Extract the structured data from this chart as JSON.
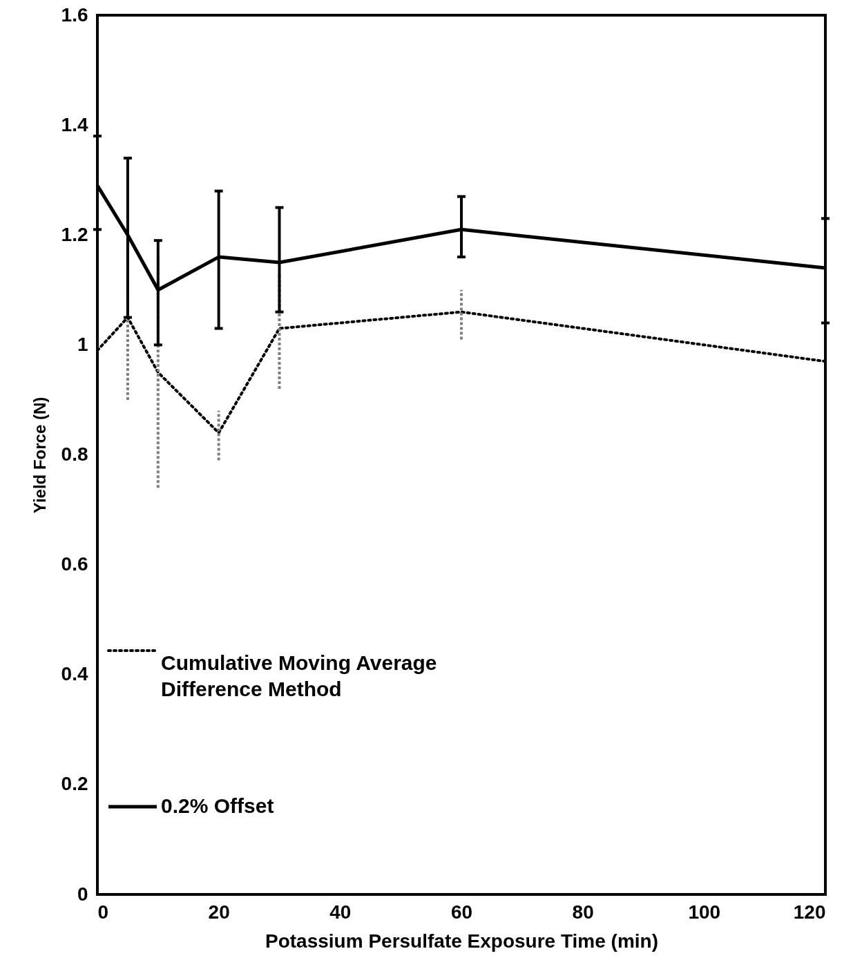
{
  "chart_data": {
    "type": "line",
    "xlabel": "Potassium Persulfate Exposure Time (min)",
    "ylabel": "Yield Force (N)",
    "x": [
      0,
      5,
      10,
      20,
      30,
      60,
      120
    ],
    "xlim": [
      0,
      120
    ],
    "xticks": [
      0,
      20,
      40,
      60,
      80,
      100,
      120
    ],
    "ylim": [
      0,
      1.6
    ],
    "yticks": [
      0,
      0.2,
      0.4,
      0.6,
      0.8,
      1,
      1.2,
      1.4,
      1.6
    ],
    "grid": false,
    "legend": "left",
    "marker": "none",
    "series": [
      {
        "name": "Cumulative Moving Average Difference Method",
        "color": "#000000",
        "line_style": "dotted",
        "values": [
          0.99,
          1.05,
          0.95,
          0.84,
          1.03,
          1.06,
          0.97
        ],
        "errors": [
          [
            0.88,
            1.08
          ],
          [
            0.9,
            1.2
          ],
          [
            0.74,
            1.16
          ],
          [
            0.79,
            0.88
          ],
          [
            0.92,
            1.13
          ],
          [
            1.01,
            1.1
          ],
          [
            0.89,
            1.04
          ]
        ]
      },
      {
        "name": "0.2% Offset",
        "color": "#000000",
        "line_style": "solid",
        "values": [
          1.29,
          1.2,
          1.1,
          1.16,
          1.15,
          1.21,
          1.14
        ],
        "errors": [
          [
            1.21,
            1.38
          ],
          [
            1.05,
            1.34
          ],
          [
            1.0,
            1.19
          ],
          [
            1.03,
            1.28
          ],
          [
            1.06,
            1.25
          ],
          [
            1.16,
            1.27
          ],
          [
            1.04,
            1.23
          ]
        ]
      }
    ]
  }
}
